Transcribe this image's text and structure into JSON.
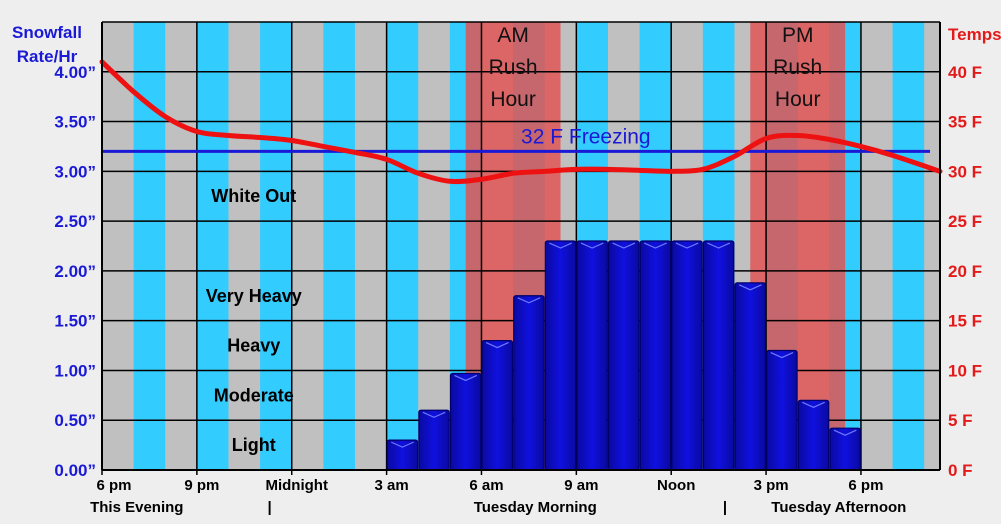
{
  "chart_data": {
    "type": "bar",
    "left_axis_title": [
      "Snowfall",
      "Rate/Hr"
    ],
    "right_axis_title": "Temps",
    "left_ticks": [
      "0.00”",
      "0.50”",
      "1.00”",
      "1.50”",
      "2.00”",
      "2.50”",
      "3.00”",
      "3.50”",
      "4.00”"
    ],
    "right_ticks": [
      "0 F",
      "5 F",
      "10 F",
      "15 F",
      "20 F",
      "25 F",
      "30 F",
      "35 F",
      "40 F"
    ],
    "left_ylim": [
      0,
      4.5
    ],
    "right_ylim": [
      0,
      45
    ],
    "x_tick_labels": [
      {
        "label": "6 pm",
        "hour": 0
      },
      {
        "label": "9 pm",
        "hour": 3
      },
      {
        "label": "Midnight",
        "hour": 6
      },
      {
        "label": "3 am",
        "hour": 9
      },
      {
        "label": "6 am",
        "hour": 12
      },
      {
        "label": "9 am",
        "hour": 15
      },
      {
        "label": "Noon",
        "hour": 18
      },
      {
        "label": "3 pm",
        "hour": 21
      },
      {
        "label": "6 pm",
        "hour": 24
      }
    ],
    "x_range_hours": [
      0,
      26.5
    ],
    "period_labels": [
      "This Evening",
      "|",
      "Tuesday Morning",
      "|",
      "Tuesday Afternoon"
    ],
    "intensity_bands": [
      {
        "label": "Light",
        "value": 0.25
      },
      {
        "label": "Moderate",
        "value": 0.75
      },
      {
        "label": "Heavy",
        "value": 1.25
      },
      {
        "label": "Very Heavy",
        "value": 1.75
      },
      {
        "label": "White Out",
        "value": 2.75
      }
    ],
    "rush_hours": [
      {
        "label": [
          "AM",
          "Rush",
          "Hour"
        ],
        "start_hour": 11.5,
        "end_hour": 14.5,
        "color": "#e05555"
      },
      {
        "label": [
          "PM",
          "Rush",
          "Hour"
        ],
        "start_hour": 20.5,
        "end_hour": 23.5,
        "color": "#e05555"
      }
    ],
    "freezing_line": {
      "label": "32 F Freezing",
      "temp_f": 32,
      "color": "#1a1ad6"
    },
    "series": [
      {
        "name": "Snowfall Rate",
        "color": "#1010e0",
        "hours": [
          9.5,
          10.5,
          11.5,
          12.5,
          13.5,
          14.5,
          15.5,
          16.5,
          17.5,
          18.5,
          19.5,
          20.5,
          21.5,
          22.5,
          23.5
        ],
        "values": [
          0.3,
          0.6,
          0.97,
          1.3,
          1.75,
          2.3,
          2.3,
          2.3,
          2.3,
          2.3,
          2.3,
          1.88,
          1.2,
          0.7,
          0.42
        ]
      },
      {
        "name": "Temperature",
        "axis": "right",
        "color": "#ee1111",
        "hours": [
          0,
          1,
          2,
          3,
          4,
          5,
          6,
          7,
          8,
          9,
          10,
          11,
          12,
          13,
          14,
          15,
          16,
          17,
          18,
          19,
          20,
          21,
          22,
          23,
          24,
          25,
          26.5
        ],
        "values": [
          41,
          38,
          35.5,
          34,
          33.6,
          33.4,
          33.1,
          32.5,
          31.9,
          31.2,
          29.8,
          29,
          29.2,
          29.8,
          30,
          30.2,
          30.2,
          30.1,
          30,
          30.2,
          31.5,
          33.3,
          33.6,
          33.2,
          32.5,
          31.6,
          30
        ]
      }
    ],
    "grid": true,
    "day_night_stripes": true
  },
  "colors": {
    "left_axis": "#1a1ad6",
    "right_axis": "#e31a1a",
    "stripe_blue": "#33ccff",
    "stripe_gray": "#c0c0c0"
  }
}
